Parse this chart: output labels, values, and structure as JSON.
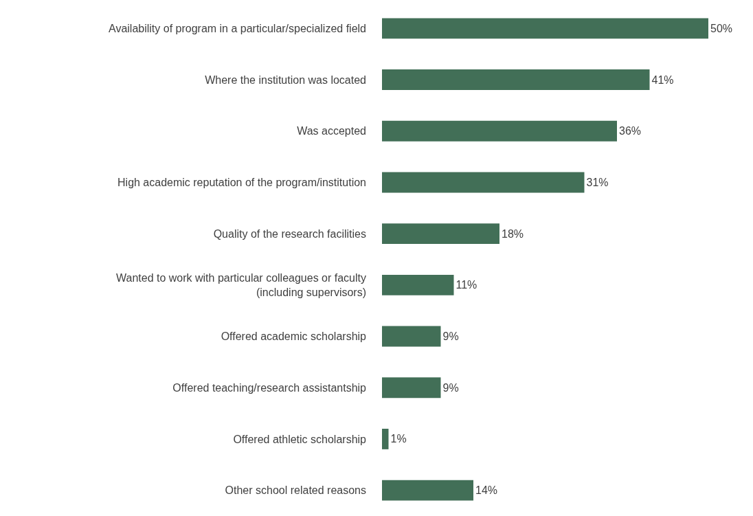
{
  "chart_data": {
    "type": "bar",
    "orientation": "horizontal",
    "categories": [
      "Availability of program in a particular/specialized field",
      "Where the institution was located",
      "Was accepted",
      "High academic reputation of the program/institution",
      "Quality of the research facilities",
      "Wanted to work with particular colleagues or faculty\n(including supervisors)",
      "Offered academic scholarship",
      "Offered teaching/research assistantship",
      "Offered athletic scholarship",
      "Other school related reasons"
    ],
    "values": [
      50,
      41,
      36,
      31,
      18,
      11,
      9,
      9,
      1,
      14
    ],
    "value_labels": [
      "50%",
      "41%",
      "36%",
      "31%",
      "18%",
      "11%",
      "9%",
      "9%",
      "1%",
      "14%"
    ],
    "color": "#426f57"
  }
}
